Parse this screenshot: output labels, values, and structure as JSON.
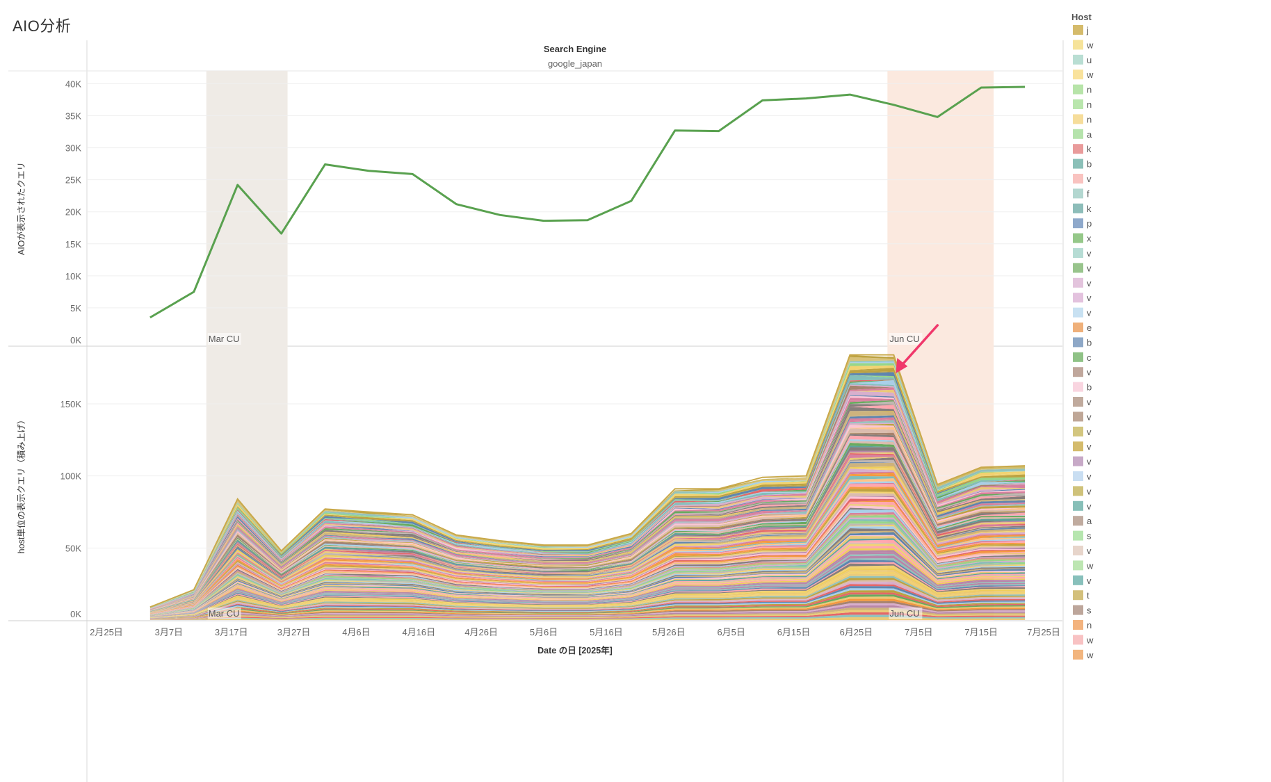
{
  "page": {
    "title": "AIO分析"
  },
  "header": {
    "field": "Search Engine",
    "value": "google_japan"
  },
  "legend": {
    "title": "Host",
    "entries": [
      {
        "label": "j",
        "color": "#d5bb6b"
      },
      {
        "label": "w",
        "color": "#f6e39a"
      },
      {
        "label": "u",
        "color": "#b9ded3"
      },
      {
        "label": "w",
        "color": "#f9e29c"
      },
      {
        "label": "n",
        "color": "#b7e4a9"
      },
      {
        "label": "n",
        "color": "#b9e6ad"
      },
      {
        "label": "n",
        "color": "#f6dd9b"
      },
      {
        "label": "a",
        "color": "#b5e3ac"
      },
      {
        "label": "k",
        "color": "#e99b9b"
      },
      {
        "label": "b",
        "color": "#8bc0b8"
      },
      {
        "label": "v",
        "color": "#f9c3c0"
      },
      {
        "label": "f",
        "color": "#b3d7d0"
      },
      {
        "label": "k",
        "color": "#8dbdb9"
      },
      {
        "label": "p",
        "color": "#8fa9cb"
      },
      {
        "label": "x",
        "color": "#95c889"
      },
      {
        "label": "v",
        "color": "#b6dcd4"
      },
      {
        "label": "v",
        "color": "#98c48c"
      },
      {
        "label": "v",
        "color": "#e3c4dd"
      },
      {
        "label": "v",
        "color": "#e3c2de"
      },
      {
        "label": "v",
        "color": "#c8e1f2"
      },
      {
        "label": "e",
        "color": "#efb07a"
      },
      {
        "label": "b",
        "color": "#8ea8c7"
      },
      {
        "label": "c",
        "color": "#8fc286"
      },
      {
        "label": "v",
        "color": "#c0a79c"
      },
      {
        "label": "b",
        "color": "#f9d5e0"
      },
      {
        "label": "v",
        "color": "#c0aa9d"
      },
      {
        "label": "v",
        "color": "#bfa797"
      },
      {
        "label": "v",
        "color": "#d3c67f"
      },
      {
        "label": "v",
        "color": "#d4bb6c"
      },
      {
        "label": "v",
        "color": "#c7a9c7"
      },
      {
        "label": "v",
        "color": "#c9def2"
      },
      {
        "label": "v",
        "color": "#cfc27a"
      },
      {
        "label": "v",
        "color": "#87bfb8"
      },
      {
        "label": "a",
        "color": "#c0ab9f"
      },
      {
        "label": "s",
        "color": "#b6e6af"
      },
      {
        "label": "v",
        "color": "#e7d5cb"
      },
      {
        "label": "w",
        "color": "#bde6b2"
      },
      {
        "label": "v",
        "color": "#88c0bb"
      },
      {
        "label": "t",
        "color": "#d3c07c"
      },
      {
        "label": "s",
        "color": "#bda69b"
      },
      {
        "label": "n",
        "color": "#f3b37e"
      },
      {
        "label": "w",
        "color": "#f8c2c3"
      },
      {
        "label": "w",
        "color": "#f2b57e"
      }
    ]
  },
  "chart_data": [
    {
      "type": "line",
      "ylabel": "AIOが表示されたクエリ",
      "ylim": [
        0,
        42000
      ],
      "y_ticks": [
        {
          "value": 0,
          "label": "0K"
        },
        {
          "value": 5000,
          "label": "5K"
        },
        {
          "value": 10000,
          "label": "10K"
        },
        {
          "value": 15000,
          "label": "15K"
        },
        {
          "value": 20000,
          "label": "20K"
        },
        {
          "value": 25000,
          "label": "25K"
        },
        {
          "value": 30000,
          "label": "30K"
        },
        {
          "value": 35000,
          "label": "35K"
        },
        {
          "value": 40000,
          "label": "40K"
        }
      ],
      "line_color": "#59a14f",
      "series": [
        {
          "x": [
            "2025-03-04",
            "2025-03-11",
            "2025-03-18",
            "2025-03-25",
            "2025-04-01",
            "2025-04-08",
            "2025-04-15",
            "2025-04-22",
            "2025-04-29",
            "2025-05-06",
            "2025-05-13",
            "2025-05-20",
            "2025-05-27",
            "2025-06-03",
            "2025-06-10",
            "2025-06-17",
            "2025-06-24",
            "2025-07-01",
            "2025-07-08",
            "2025-07-15",
            "2025-07-22"
          ],
          "values": [
            3500,
            7500,
            24200,
            16600,
            27400,
            26400,
            25900,
            21200,
            19500,
            18600,
            18700,
            21700,
            32700,
            32600,
            37400,
            37700,
            38300,
            36700,
            34800,
            39400,
            39500
          ]
        }
      ],
      "bands": [
        {
          "label": "Mar CU",
          "start": "2025-03-13",
          "end": "2025-03-26",
          "color": "#efebe6"
        },
        {
          "label": "Jun CU",
          "start": "2025-06-30",
          "end": "2025-07-17",
          "color": "#fbe9df"
        }
      ]
    },
    {
      "type": "area",
      "stacked": true,
      "ylabel": "host単位の表示クエリ（積み上げ）",
      "ylim": [
        0,
        190000
      ],
      "y_ticks": [
        {
          "value": 0,
          "label": "0K"
        },
        {
          "value": 50000,
          "label": "50K"
        },
        {
          "value": 100000,
          "label": "100K"
        },
        {
          "value": 150000,
          "label": "150K"
        }
      ],
      "x": [
        "2025-03-04",
        "2025-03-11",
        "2025-03-18",
        "2025-03-25",
        "2025-04-01",
        "2025-04-08",
        "2025-04-15",
        "2025-04-22",
        "2025-04-29",
        "2025-05-06",
        "2025-05-13",
        "2025-05-20",
        "2025-05-27",
        "2025-06-03",
        "2025-06-10",
        "2025-06-17",
        "2025-06-24",
        "2025-07-01",
        "2025-07-08",
        "2025-07-15",
        "2025-07-22"
      ],
      "total": [
        9000,
        21000,
        84000,
        48000,
        77000,
        75000,
        73000,
        59000,
        55000,
        52000,
        52000,
        60000,
        91000,
        91000,
        99000,
        100000,
        184000,
        184000,
        94000,
        106000,
        107000
      ],
      "bands": [
        {
          "label": "Mar CU",
          "start": "2025-03-13",
          "end": "2025-03-26",
          "color": "#efebe6"
        },
        {
          "label": "Jun CU",
          "start": "2025-06-30",
          "end": "2025-07-17",
          "color": "#fbe9df"
        }
      ],
      "annotation": {
        "type": "arrow",
        "color": "#f0386b",
        "target_x": "2025-07-01"
      }
    }
  ],
  "x_axis": {
    "title": "Date の日 [2025年]",
    "min": "2025-02-22",
    "max": "2025-07-28",
    "ticks": [
      {
        "date": "2025-02-25",
        "label": "2月25日"
      },
      {
        "date": "2025-03-07",
        "label": "3月7日"
      },
      {
        "date": "2025-03-17",
        "label": "3月17日"
      },
      {
        "date": "2025-03-27",
        "label": "3月27日"
      },
      {
        "date": "2025-04-06",
        "label": "4月6日"
      },
      {
        "date": "2025-04-16",
        "label": "4月16日"
      },
      {
        "date": "2025-04-26",
        "label": "4月26日"
      },
      {
        "date": "2025-05-06",
        "label": "5月6日"
      },
      {
        "date": "2025-05-16",
        "label": "5月16日"
      },
      {
        "date": "2025-05-26",
        "label": "5月26日"
      },
      {
        "date": "2025-06-05",
        "label": "6月5日"
      },
      {
        "date": "2025-06-15",
        "label": "6月15日"
      },
      {
        "date": "2025-06-25",
        "label": "6月25日"
      },
      {
        "date": "2025-07-05",
        "label": "7月5日"
      },
      {
        "date": "2025-07-15",
        "label": "7月15日"
      },
      {
        "date": "2025-07-25",
        "label": "7月25日"
      }
    ]
  },
  "colors": {
    "palette": [
      "#4e79a7",
      "#f28e2b",
      "#e15759",
      "#76b7b2",
      "#59a14f",
      "#edc948",
      "#b07aa1",
      "#ff9da7",
      "#9c755f",
      "#bab0ac",
      "#a0cbe8",
      "#ffbe7d",
      "#8cd17d",
      "#b6992d",
      "#f1ce63",
      "#86bcb6",
      "#d37295",
      "#fabfd2",
      "#d4a6c8",
      "#79706e",
      "#d7b5a6",
      "#499894",
      "#e9c46a",
      "#c9ab6f"
    ]
  }
}
